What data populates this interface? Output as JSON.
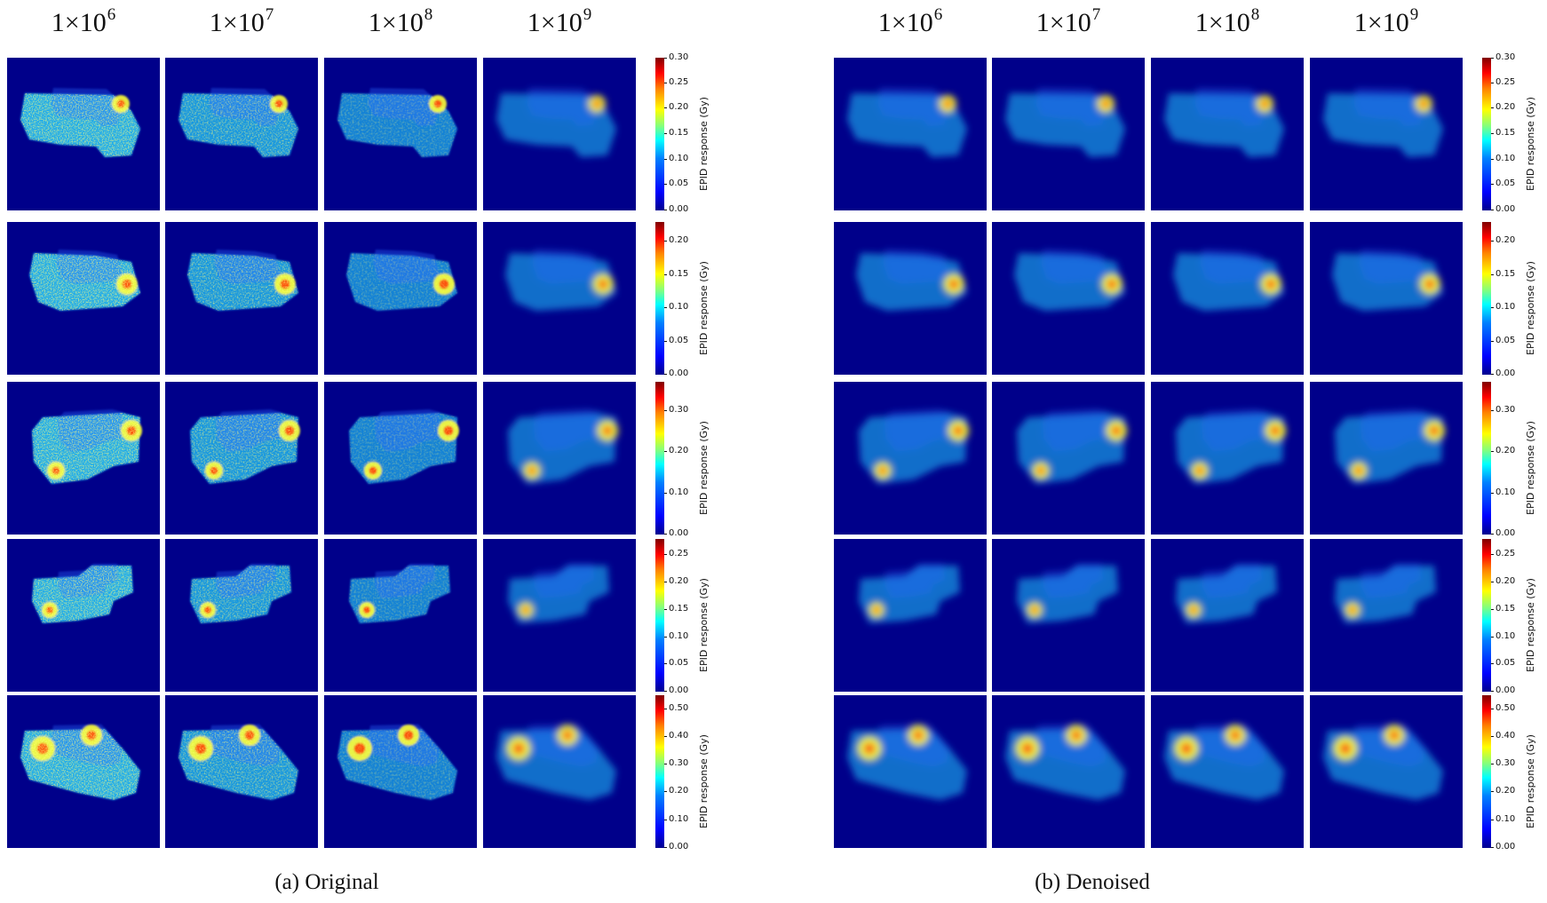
{
  "panels": [
    {
      "id": "original",
      "caption": "(a) Original"
    },
    {
      "id": "denoised",
      "caption": "(b) Denoised"
    }
  ],
  "columns": [
    {
      "base": "1×10",
      "exp": "6"
    },
    {
      "base": "1×10",
      "exp": "7"
    },
    {
      "base": "1×10",
      "exp": "8"
    },
    {
      "base": "1×10",
      "exp": "9"
    }
  ],
  "colorbar": {
    "label": "EPID response (Gy)",
    "rows": [
      {
        "max": 0.3,
        "ticks": [
          "0.30",
          "0.25",
          "0.20",
          "0.15",
          "0.10",
          "0.05",
          "0.00"
        ]
      },
      {
        "max": 0.23,
        "ticks": [
          "0.20",
          "0.15",
          "0.10",
          "0.05",
          "0.00"
        ]
      },
      {
        "max": 0.37,
        "ticks": [
          "0.30",
          "0.20",
          "0.10",
          "0.00"
        ]
      },
      {
        "max": 0.28,
        "ticks": [
          "0.25",
          "0.20",
          "0.15",
          "0.10",
          "0.05",
          "0.00"
        ]
      },
      {
        "max": 0.55,
        "ticks": [
          "0.50",
          "0.40",
          "0.30",
          "0.20",
          "0.10",
          "0.00"
        ]
      }
    ]
  },
  "colors": {
    "background": "#00008a",
    "field": "#1ec8ff",
    "hot": "#ffff33",
    "peak": "#ff2a00"
  }
}
